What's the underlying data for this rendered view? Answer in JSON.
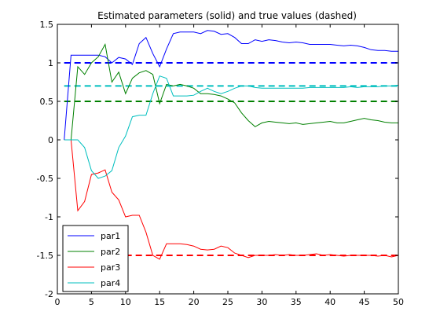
{
  "chart_data": {
    "type": "line",
    "title": "Estimated parameters (solid) and true values (dashed)",
    "xlabel": "",
    "ylabel": "",
    "xlim": [
      0,
      50
    ],
    "ylim": [
      -2,
      1.5
    ],
    "xticks": [
      0,
      5,
      10,
      15,
      20,
      25,
      30,
      35,
      40,
      45,
      50
    ],
    "yticks": [
      -2,
      -1.5,
      -1,
      -0.5,
      0,
      0.5,
      1,
      1.5
    ],
    "grid": false,
    "legend_position": "bottom-left",
    "x": [
      1,
      2,
      3,
      4,
      5,
      6,
      7,
      8,
      9,
      10,
      11,
      12,
      13,
      14,
      15,
      16,
      17,
      18,
      19,
      20,
      21,
      22,
      23,
      24,
      25,
      26,
      27,
      28,
      29,
      30,
      31,
      32,
      33,
      34,
      35,
      36,
      37,
      38,
      39,
      40,
      41,
      42,
      43,
      44,
      45,
      46,
      47,
      48,
      49,
      50
    ],
    "series": [
      {
        "name": "par1",
        "color": "#0000ff",
        "true_value": 1.0,
        "values": [
          0.0,
          1.1,
          1.1,
          1.1,
          1.1,
          1.1,
          1.08,
          1.0,
          1.07,
          1.05,
          0.98,
          1.25,
          1.33,
          1.12,
          0.95,
          1.18,
          1.38,
          1.4,
          1.4,
          1.4,
          1.38,
          1.42,
          1.41,
          1.37,
          1.38,
          1.33,
          1.25,
          1.25,
          1.3,
          1.28,
          1.3,
          1.29,
          1.27,
          1.26,
          1.27,
          1.26,
          1.24,
          1.24,
          1.24,
          1.24,
          1.23,
          1.22,
          1.23,
          1.22,
          1.2,
          1.17,
          1.16,
          1.16,
          1.15,
          1.15
        ]
      },
      {
        "name": "par2",
        "color": "#008000",
        "true_value": 0.5,
        "values": [
          0.0,
          0.0,
          0.95,
          0.85,
          1.0,
          1.08,
          1.24,
          0.75,
          0.88,
          0.6,
          0.8,
          0.87,
          0.9,
          0.85,
          0.47,
          0.72,
          0.7,
          0.72,
          0.7,
          0.67,
          0.6,
          0.6,
          0.59,
          0.57,
          0.53,
          0.48,
          0.35,
          0.25,
          0.17,
          0.22,
          0.24,
          0.23,
          0.22,
          0.21,
          0.22,
          0.2,
          0.21,
          0.22,
          0.23,
          0.24,
          0.22,
          0.22,
          0.24,
          0.26,
          0.28,
          0.26,
          0.25,
          0.23,
          0.22,
          0.22
        ]
      },
      {
        "name": "par3",
        "color": "#ff0000",
        "true_value": -1.5,
        "values": [
          0.0,
          0.0,
          -0.92,
          -0.8,
          -0.45,
          -0.43,
          -0.39,
          -0.68,
          -0.78,
          -1.0,
          -0.98,
          -0.98,
          -1.2,
          -1.5,
          -1.55,
          -1.35,
          -1.35,
          -1.35,
          -1.36,
          -1.38,
          -1.42,
          -1.43,
          -1.42,
          -1.38,
          -1.4,
          -1.47,
          -1.5,
          -1.53,
          -1.5,
          -1.5,
          -1.5,
          -1.49,
          -1.5,
          -1.49,
          -1.5,
          -1.5,
          -1.49,
          -1.48,
          -1.5,
          -1.49,
          -1.5,
          -1.51,
          -1.5,
          -1.5,
          -1.5,
          -1.5,
          -1.51,
          -1.5,
          -1.52,
          -1.5
        ]
      },
      {
        "name": "par4",
        "color": "#00bfbf",
        "true_value": 0.7,
        "values": [
          0.0,
          0.0,
          0.0,
          -0.1,
          -0.4,
          -0.5,
          -0.47,
          -0.4,
          -0.1,
          0.05,
          0.3,
          0.32,
          0.32,
          0.6,
          0.83,
          0.8,
          0.57,
          0.57,
          0.57,
          0.58,
          0.63,
          0.67,
          0.63,
          0.6,
          0.63,
          0.67,
          0.7,
          0.7,
          0.68,
          0.67,
          0.67,
          0.67,
          0.67,
          0.67,
          0.67,
          0.67,
          0.68,
          0.68,
          0.68,
          0.68,
          0.68,
          0.68,
          0.69,
          0.68,
          0.69,
          0.69,
          0.69,
          0.7,
          0.7,
          0.71
        ]
      }
    ]
  }
}
